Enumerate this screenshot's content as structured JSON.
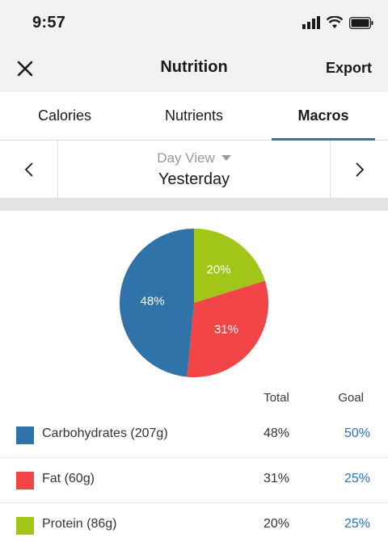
{
  "status_bar": {
    "time": "9:57"
  },
  "nav": {
    "title": "Nutrition",
    "export_label": "Export"
  },
  "tabs": [
    {
      "label": "Calories",
      "active": false
    },
    {
      "label": "Nutrients",
      "active": false
    },
    {
      "label": "Macros",
      "active": true
    }
  ],
  "day_nav": {
    "view_label": "Day View",
    "day_label": "Yesterday"
  },
  "chart_data": {
    "type": "pie",
    "title": "",
    "slices": [
      {
        "label": "20%",
        "value": 20,
        "color": "#a2c617"
      },
      {
        "label": "31%",
        "value": 31,
        "color": "#f24548"
      },
      {
        "label": "48%",
        "value": 48,
        "color": "#2f73a8"
      }
    ]
  },
  "macros": {
    "header_total": "Total",
    "header_goal": "Goal",
    "rows": [
      {
        "label": "Carbohydrates (207g)",
        "total": "48%",
        "goal": "50%",
        "color": "#2f73a8"
      },
      {
        "label": "Fat (60g)",
        "total": "31%",
        "goal": "25%",
        "color": "#f24548"
      },
      {
        "label": "Protein (86g)",
        "total": "20%",
        "goal": "25%",
        "color": "#a2c617"
      }
    ]
  },
  "colors": {
    "accent": "#2f75b5",
    "goal_text": "#2f6fb5"
  }
}
